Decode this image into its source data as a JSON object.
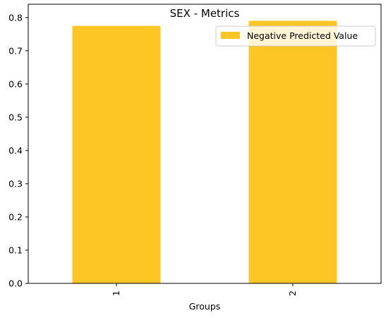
{
  "chart_data": {
    "type": "bar",
    "title": "SEX - Metrics",
    "xlabel": "Groups",
    "ylabel": "",
    "categories": [
      "1",
      "2"
    ],
    "series": [
      {
        "name": "Negative Predicted Value",
        "values": [
          0.775,
          0.79
        ],
        "color": "#fdc624"
      }
    ],
    "ylim": [
      0,
      0.84
    ],
    "yticks": [
      "0.0",
      "0.1",
      "0.2",
      "0.3",
      "0.4",
      "0.5",
      "0.6",
      "0.7",
      "0.8"
    ],
    "grid": false,
    "legend_position": "top-right"
  }
}
